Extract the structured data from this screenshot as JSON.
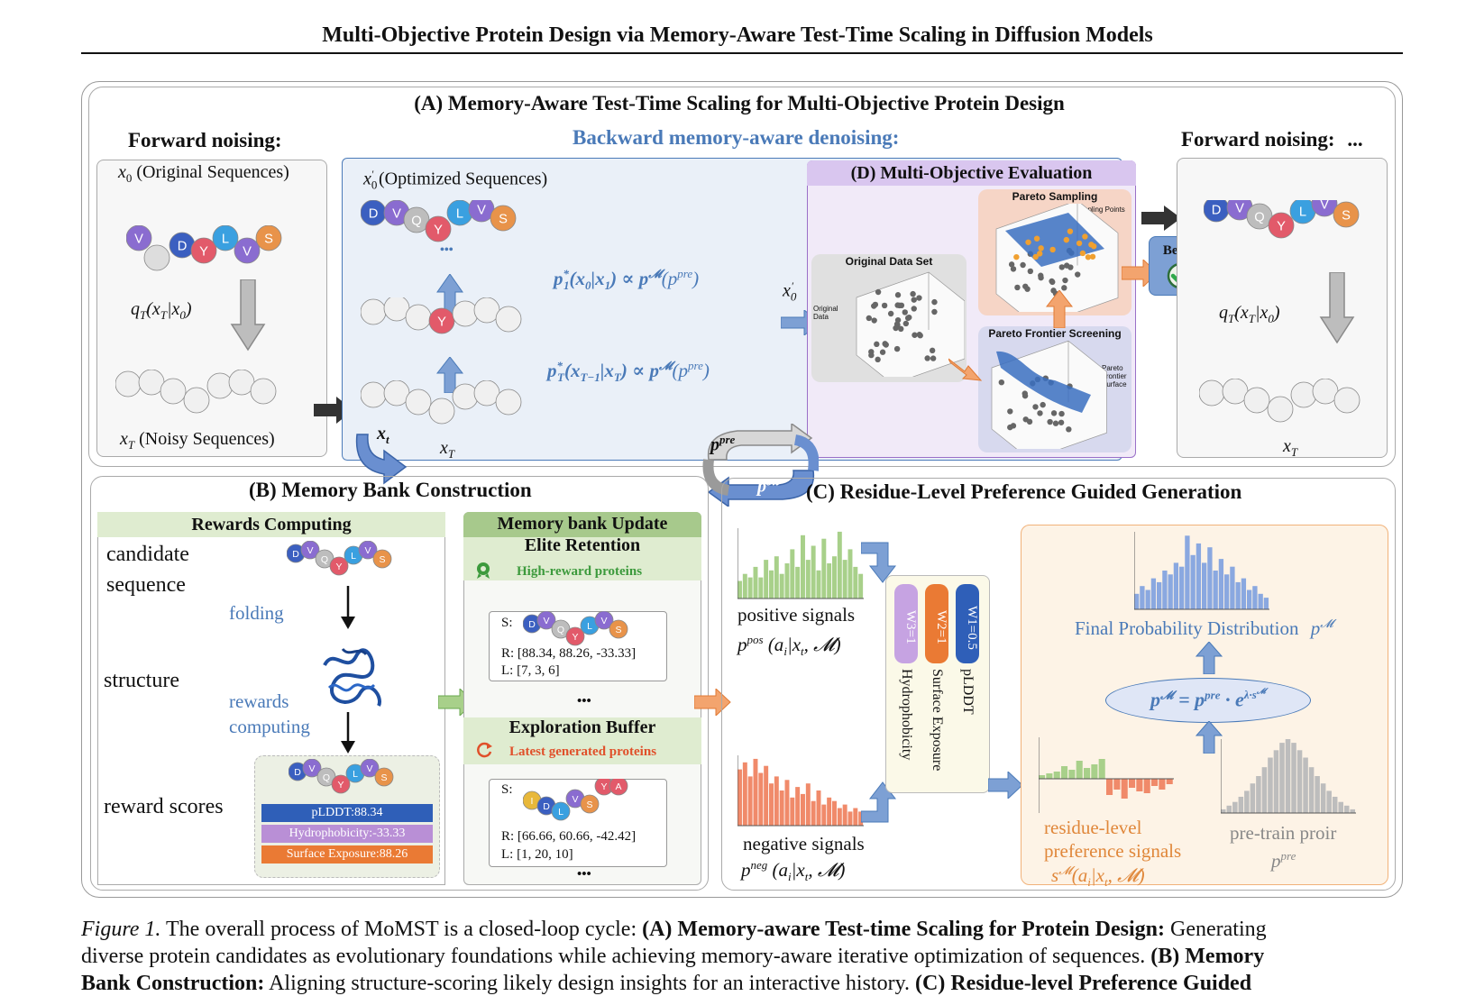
{
  "header": {
    "title": "Multi-Objective Protein Design via Memory-Aware Test-Time Scaling in Diffusion Models"
  },
  "panelA": {
    "title": "(A)  Memory-Aware Test-Time Scaling for Multi-Objective Protein Design",
    "forward_left": "Forward noising:",
    "backward": "Backward memory-aware denoising:",
    "forward_right": "Forward noising:",
    "forward_right_ellipsis": "...",
    "x0_label": "x",
    "x0_sub": "0",
    "x0_text": "(Original Sequences)",
    "xT_label": "x",
    "xT_sub": "T",
    "xT_text": "(Noisy Sequences)",
    "q_left": "q_T(x_T|x_0)",
    "x0p_label": "x",
    "x0p_text": "(Optimized Sequences)",
    "eq1": "p*_1(x_0|x_1) ∝ p^M(p^pre)",
    "eq2": "p*_T(x_{T-1}|x_T) ∝ p^M(p^pre)",
    "xT_mid": "x_T",
    "x0p_mid": "x'_0",
    "q_right": "q_T(x_T|x_0)",
    "xT_right": "x_T",
    "dots": "...",
    "xt_badge": "x_t",
    "ppre_badge": "p^pre",
    "pM_badge": "p^M",
    "best": "Best !"
  },
  "panelD": {
    "title": "(D) Multi-Objective Evaluation",
    "pareto_sampling": "Pareto Sampling",
    "sampling_points": "Sampling Points",
    "original_data_set": "Original Data Set",
    "original_data": "Original Data",
    "pareto_frontier_screening": "Pareto Frontier Screening",
    "pareto_frontier_surface": "Pareto Frontier Surface"
  },
  "panelB": {
    "title": "(B) Memory Bank Construction",
    "rewards_computing": "Rewards Computing",
    "candidate": "candidate",
    "sequence": "sequence",
    "folding": "folding",
    "structure": "structure",
    "rewards": "rewards",
    "computing": "computing",
    "reward_scores": "reward scores",
    "score_plddt": "pLDDT:88.34",
    "score_hydro": "Hydrophobicity:-33.33",
    "score_surface": "Surface Exposure:88.26",
    "memory_bank_update": "Memory bank Update",
    "elite_retention": "Elite Retention",
    "high_reward": "High-reward proteins",
    "elite_s": "S:",
    "elite_r": "R: [88.34, 88.26, -33.33]",
    "elite_l": "L: [7, 3, 6]",
    "dots": "•••",
    "exploration_buffer": "Exploration Buffer",
    "latest_generated": "Latest generated proteins",
    "expl_s": "S:",
    "expl_r": "R: [66.66, 60.66, -42.42]",
    "expl_l": "L: [1, 20, 10]"
  },
  "panelC": {
    "title": "(C)  Residue-Level Preference Guided Generation",
    "positive": "positive signals",
    "p_pos": "p^pos (a_i|x_t, M)",
    "negative": "negative signals",
    "p_neg": "p^neg (a_i|x_t, M)",
    "w3": "W3=1",
    "w2": "W2=1",
    "w1": "W1=0.5",
    "hydrophobicity": "Hydrophobicity",
    "surface_exposure": "Surface Exposure",
    "plddt": "pLDDT",
    "final_prob": "Final Probability Distribution",
    "final_sym": "p^M",
    "formula": "p^M = p^pre · e^{λ·s^M}",
    "residue_level": "residue-level",
    "preference_signals": "preference signals",
    "s_m": "s^M(a_i|x_t, M)",
    "pretrain": "pre-train proir",
    "p_pre": "p^pre"
  },
  "caption": {
    "fig": "Figure 1.",
    "line1a": "The overall process of MoMST is a closed-loop cycle:",
    "line1b": "(A) Memory-aware Test-time Scaling for Protein Design:",
    "line1c": "Generating",
    "line2a": "diverse protein candidates as evolutionary foundations while achieving memory-aware iterative optimization of sequences.",
    "line2b": "(B) Memory",
    "line3a": "Bank Construction:",
    "line3b": "Aligning structure-scoring likely design insights for an interactive history.",
    "line3c": "(C) Residue-level Preference Guided"
  },
  "colors": {
    "blue_text": "#4a7ab8",
    "panel_blue_bg": "#e9eef8",
    "purple_bg": "#ece4f6",
    "orange_bg": "#fdf3e6",
    "green_header": "#dfeccf",
    "plddt": "#2f5fb8",
    "hydro": "#b98fd6",
    "surface": "#ea7a34"
  },
  "residues": [
    "D",
    "V",
    "Q",
    "Y",
    "L",
    "V",
    "S"
  ]
}
